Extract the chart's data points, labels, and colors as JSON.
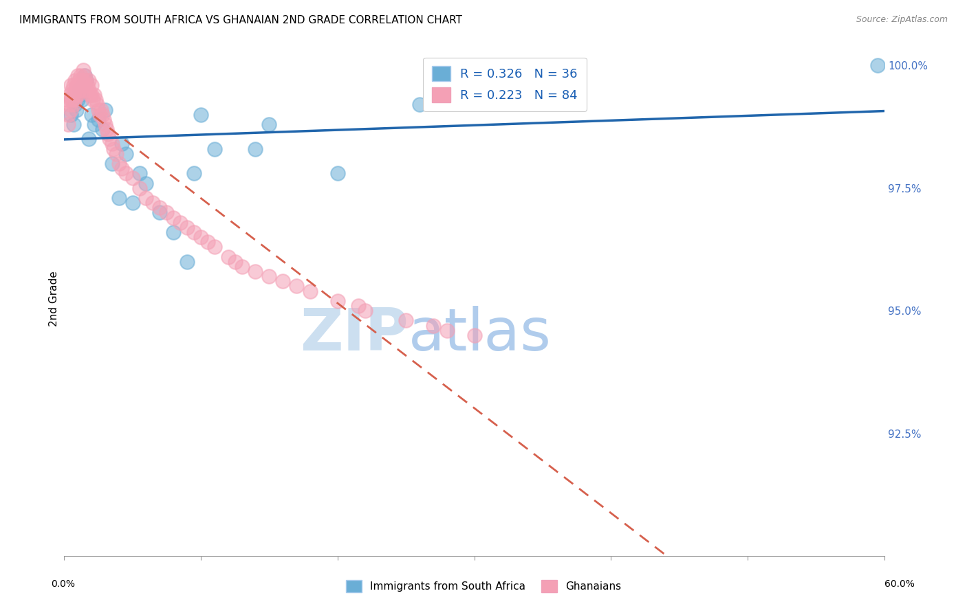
{
  "title": "IMMIGRANTS FROM SOUTH AFRICA VS GHANAIAN 2ND GRADE CORRELATION CHART",
  "source": "Source: ZipAtlas.com",
  "ylabel": "2nd Grade",
  "ylabel_right_ticks": [
    "100.0%",
    "97.5%",
    "95.0%",
    "92.5%"
  ],
  "ylabel_right_vals": [
    1.0,
    0.975,
    0.95,
    0.925
  ],
  "xmin": 0.0,
  "xmax": 0.6,
  "ymin": 0.9,
  "ymax": 1.005,
  "blue_color": "#6aaed6",
  "pink_color": "#f4a0b5",
  "trendline_blue_color": "#2166ac",
  "trendline_pink_color": "#d6604d",
  "blue_points_x": [
    0.005,
    0.007,
    0.008,
    0.009,
    0.01,
    0.011,
    0.012,
    0.013,
    0.014,
    0.015,
    0.016,
    0.018,
    0.02,
    0.022,
    0.025,
    0.028,
    0.03,
    0.035,
    0.04,
    0.042,
    0.045,
    0.05,
    0.055,
    0.06,
    0.07,
    0.08,
    0.09,
    0.095,
    0.1,
    0.11,
    0.14,
    0.15,
    0.2,
    0.26,
    0.3,
    0.595
  ],
  "blue_points_y": [
    0.99,
    0.988,
    0.992,
    0.991,
    0.993,
    0.995,
    0.994,
    0.993,
    0.996,
    0.998,
    0.997,
    0.985,
    0.99,
    0.988,
    0.989,
    0.987,
    0.991,
    0.98,
    0.973,
    0.984,
    0.982,
    0.972,
    0.978,
    0.976,
    0.97,
    0.966,
    0.96,
    0.978,
    0.99,
    0.983,
    0.983,
    0.988,
    0.978,
    0.992,
    0.994,
    1.0
  ],
  "pink_points_x": [
    0.002,
    0.003,
    0.003,
    0.004,
    0.004,
    0.005,
    0.005,
    0.005,
    0.006,
    0.006,
    0.007,
    0.007,
    0.007,
    0.008,
    0.008,
    0.008,
    0.009,
    0.009,
    0.01,
    0.01,
    0.01,
    0.011,
    0.011,
    0.012,
    0.012,
    0.013,
    0.013,
    0.014,
    0.014,
    0.015,
    0.015,
    0.016,
    0.016,
    0.017,
    0.018,
    0.018,
    0.019,
    0.02,
    0.02,
    0.021,
    0.022,
    0.023,
    0.024,
    0.025,
    0.026,
    0.027,
    0.028,
    0.029,
    0.03,
    0.031,
    0.032,
    0.033,
    0.035,
    0.036,
    0.038,
    0.04,
    0.042,
    0.045,
    0.05,
    0.055,
    0.06,
    0.065,
    0.07,
    0.075,
    0.08,
    0.085,
    0.09,
    0.095,
    0.1,
    0.105,
    0.11,
    0.12,
    0.125,
    0.13,
    0.14,
    0.15,
    0.16,
    0.17,
    0.18,
    0.2,
    0.215,
    0.22,
    0.25,
    0.27,
    0.28,
    0.3
  ],
  "pink_points_y": [
    0.993,
    0.99,
    0.988,
    0.994,
    0.992,
    0.996,
    0.993,
    0.991,
    0.995,
    0.993,
    0.996,
    0.994,
    0.992,
    0.997,
    0.995,
    0.993,
    0.996,
    0.994,
    0.998,
    0.996,
    0.994,
    0.997,
    0.995,
    0.998,
    0.996,
    0.997,
    0.995,
    0.999,
    0.997,
    0.998,
    0.996,
    0.997,
    0.995,
    0.996,
    0.997,
    0.995,
    0.994,
    0.996,
    0.994,
    0.993,
    0.994,
    0.993,
    0.992,
    0.991,
    0.99,
    0.991,
    0.99,
    0.989,
    0.988,
    0.987,
    0.986,
    0.985,
    0.984,
    0.983,
    0.982,
    0.98,
    0.979,
    0.978,
    0.977,
    0.975,
    0.973,
    0.972,
    0.971,
    0.97,
    0.969,
    0.968,
    0.967,
    0.966,
    0.965,
    0.964,
    0.963,
    0.961,
    0.96,
    0.959,
    0.958,
    0.957,
    0.956,
    0.955,
    0.954,
    0.952,
    0.951,
    0.95,
    0.948,
    0.947,
    0.946,
    0.945
  ]
}
